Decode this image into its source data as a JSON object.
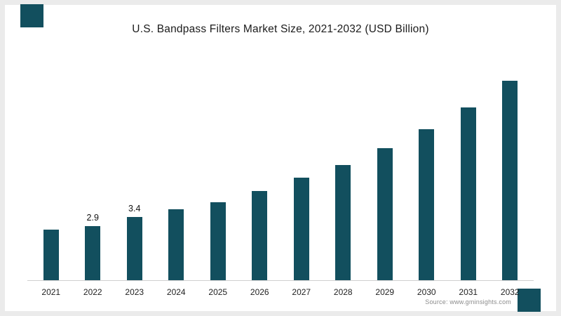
{
  "header": {
    "title": "U.S. Bandpass Filters Market Size, 2021-2032 (USD Billion)"
  },
  "footer": {
    "source": "Source: www.gminsights.com"
  },
  "colors": {
    "bar": "#124f5e",
    "accent_square": "#124f5e",
    "axis": "#cfcfcf",
    "frame_border": "#ebebeb"
  },
  "chart_data": {
    "type": "bar",
    "title": "U.S. Bandpass Filters Market Size, 2021-2032 (USD Billion)",
    "categories": [
      "2021",
      "2022",
      "2023",
      "2024",
      "2025",
      "2026",
      "2027",
      "2028",
      "2029",
      "2030",
      "2031",
      "2032"
    ],
    "values": [
      2.7,
      2.9,
      3.4,
      3.8,
      4.2,
      4.8,
      5.5,
      6.2,
      7.1,
      8.1,
      9.3,
      10.7
    ],
    "data_labels": [
      "",
      "2.9",
      "3.4",
      "",
      "",
      "",
      "",
      "",
      "",
      "",
      "",
      ""
    ],
    "xlabel": "",
    "ylabel": "USD Billion",
    "ylim": [
      0,
      12
    ],
    "grid": false,
    "legend": "none"
  }
}
